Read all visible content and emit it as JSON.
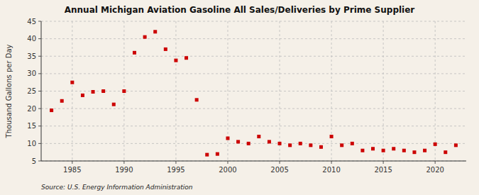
{
  "chart_data": {
    "type": "scatter",
    "title": "Annual Michigan Aviation Gasoline All Sales/Deliveries by Prime Supplier",
    "ylabel": "Thousand Gallons per Day",
    "annotations": [
      "Source: U.S. Energy Information Administration"
    ],
    "color": "#cc0000",
    "marker": "square",
    "grid": true,
    "xlim": [
      1982,
      2023
    ],
    "ylim": [
      5,
      45
    ],
    "xticks": [
      1985,
      1990,
      1995,
      2000,
      2005,
      2010,
      2015,
      2020
    ],
    "yticks": [
      5,
      10,
      15,
      20,
      25,
      30,
      35,
      40,
      45
    ],
    "x": [
      1983,
      1984,
      1985,
      1986,
      1987,
      1988,
      1989,
      1990,
      1991,
      1992,
      1993,
      1994,
      1995,
      1996,
      1997,
      1998,
      1999,
      2000,
      2001,
      2002,
      2003,
      2004,
      2005,
      2006,
      2007,
      2008,
      2009,
      2010,
      2011,
      2012,
      2013,
      2014,
      2015,
      2016,
      2017,
      2018,
      2019,
      2020,
      2021,
      2022
    ],
    "values": [
      19.5,
      22.2,
      27.5,
      23.8,
      24.8,
      25.0,
      21.2,
      25.0,
      36.0,
      40.5,
      42.0,
      37.0,
      33.8,
      34.5,
      22.5,
      6.8,
      7.0,
      11.5,
      10.5,
      10.0,
      12.0,
      10.5,
      10.0,
      9.5,
      10.0,
      9.5,
      9.0,
      12.0,
      9.5,
      10.0,
      8.0,
      8.5,
      8.0,
      8.5,
      8.0,
      7.5,
      8.0,
      9.8,
      7.5,
      9.5
    ]
  }
}
